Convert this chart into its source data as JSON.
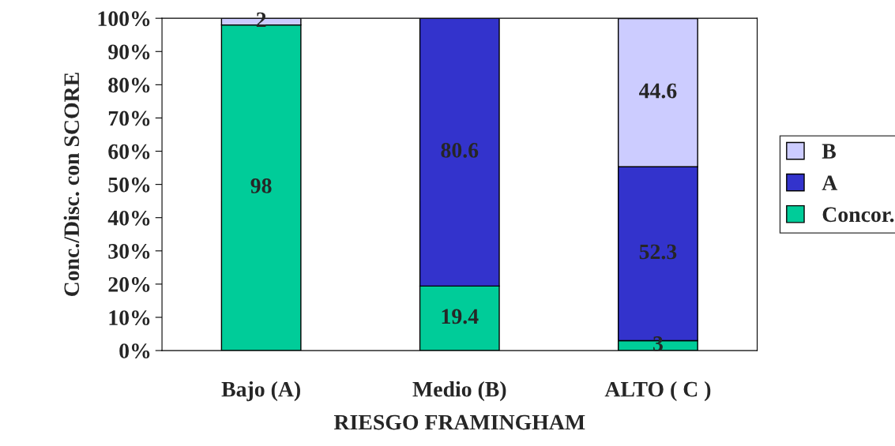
{
  "chart_data": {
    "type": "bar",
    "stacked": true,
    "xlabel": "RIESGO FRAMINGHAM",
    "ylabel": "Conc./Disc. con SCORE",
    "categories": [
      "Bajo (A)",
      "Medio (B)",
      "ALTO ( C )"
    ],
    "series": [
      {
        "name": "Concor.",
        "color": "#00cc99",
        "values": [
          98,
          19.4,
          3
        ],
        "value_labels": [
          "98",
          "19.4",
          "3"
        ]
      },
      {
        "name": "A",
        "color": "#3333cc",
        "values": [
          null,
          80.6,
          52.3
        ],
        "value_labels": [
          null,
          "80.6",
          "52.3"
        ]
      },
      {
        "name": "B",
        "color": "#ccccff",
        "values": [
          2,
          null,
          44.6
        ],
        "value_labels": [
          "2",
          null,
          "44.6"
        ]
      }
    ],
    "ylim": [
      0,
      100
    ],
    "yticks": [
      {
        "value": 0,
        "label": "0%"
      },
      {
        "value": 10,
        "label": "10%"
      },
      {
        "value": 20,
        "label": "20%"
      },
      {
        "value": 30,
        "label": "30%"
      },
      {
        "value": 40,
        "label": "40%"
      },
      {
        "value": 50,
        "label": "50%"
      },
      {
        "value": 60,
        "label": "60%"
      },
      {
        "value": 70,
        "label": "70%"
      },
      {
        "value": 80,
        "label": "80%"
      },
      {
        "value": 90,
        "label": "90%"
      },
      {
        "value": 100,
        "label": "100%"
      }
    ],
    "grid": false,
    "legend": "right"
  }
}
